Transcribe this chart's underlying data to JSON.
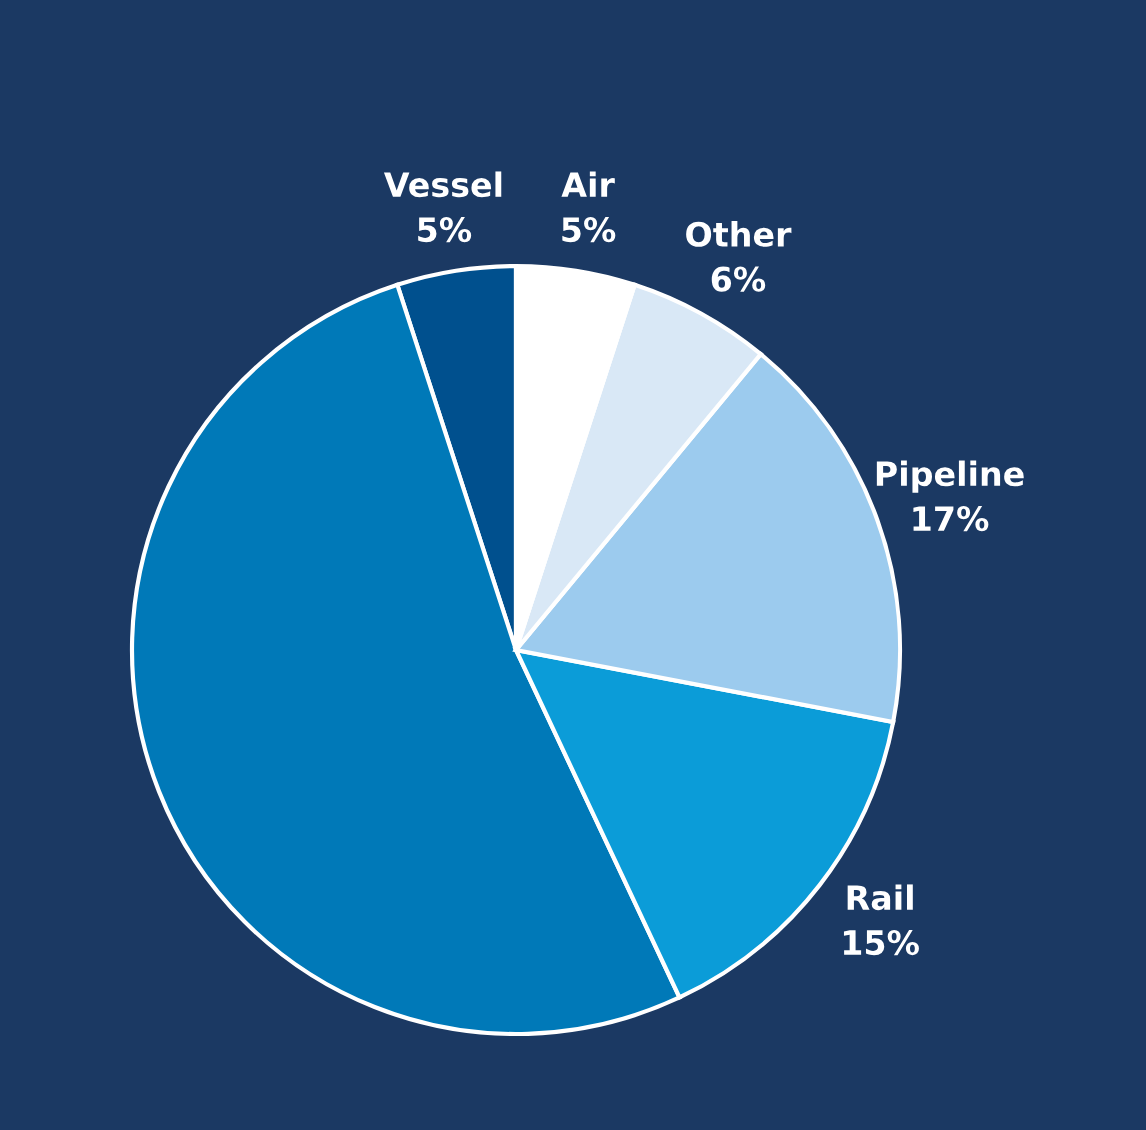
{
  "chart_data": {
    "type": "pie",
    "categories": [
      "Vessel",
      null,
      "Rail",
      "Pipeline",
      "Other",
      "Air"
    ],
    "values": [
      5,
      52,
      15,
      17,
      6,
      5
    ],
    "value_labels": [
      "5%",
      null,
      "15%",
      "17%",
      "6%",
      "5%"
    ],
    "colors": [
      "#00508e",
      "#0079b8",
      "#0b9cd8",
      "#9ccbee",
      "#d9e8f6",
      "#ffffff"
    ]
  }
}
